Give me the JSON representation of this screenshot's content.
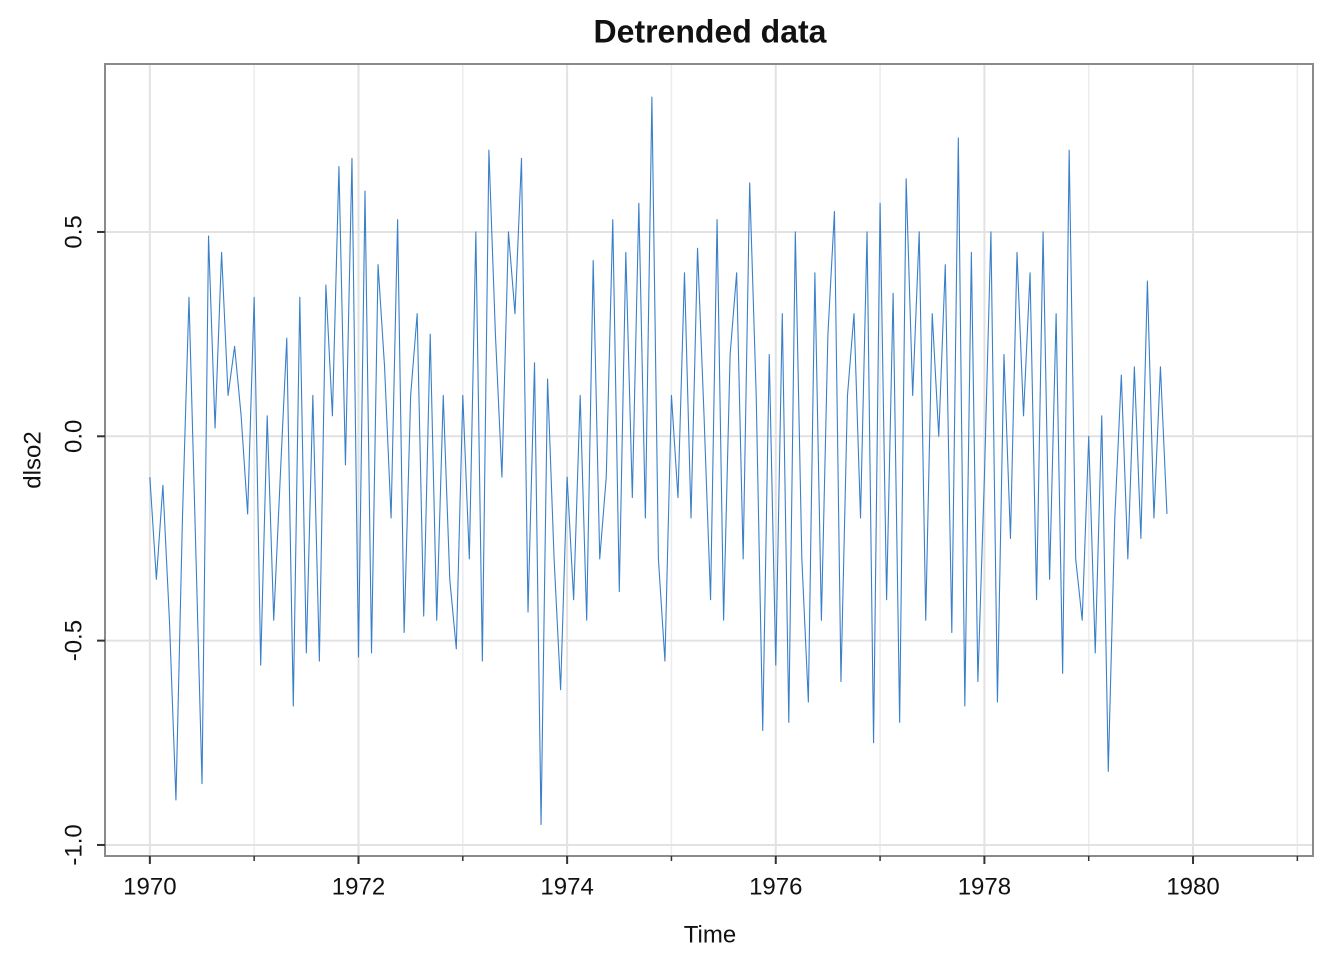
{
  "chart_data": {
    "type": "line",
    "title": "Detrended data",
    "xlabel": "Time",
    "ylabel": "dlso2",
    "x": [
      1970,
      1970.0625,
      1970.125,
      1970.1875,
      1970.25,
      1970.3125,
      1970.375,
      1970.4375,
      1970.5,
      1970.5625,
      1970.625,
      1970.6875,
      1970.75,
      1970.8125,
      1970.875,
      1970.9375,
      1971,
      1971.0625,
      1971.125,
      1971.1875,
      1971.25,
      1971.3125,
      1971.375,
      1971.4375,
      1971.5,
      1971.5625,
      1971.625,
      1971.6875,
      1971.75,
      1971.8125,
      1971.875,
      1971.9375,
      1972,
      1972.0625,
      1972.125,
      1972.1875,
      1972.25,
      1972.3125,
      1972.375,
      1972.4375,
      1972.5,
      1972.5625,
      1972.625,
      1972.6875,
      1972.75,
      1972.8125,
      1972.875,
      1972.9375,
      1973,
      1973.0625,
      1973.125,
      1973.1875,
      1973.25,
      1973.3125,
      1973.375,
      1973.4375,
      1973.5,
      1973.5625,
      1973.625,
      1973.6875,
      1973.75,
      1973.8125,
      1973.875,
      1973.9375,
      1974,
      1974.0625,
      1974.125,
      1974.1875,
      1974.25,
      1974.3125,
      1974.375,
      1974.4375,
      1974.5,
      1974.5625,
      1974.625,
      1974.6875,
      1974.75,
      1974.8125,
      1974.875,
      1974.9375,
      1975,
      1975.0625,
      1975.125,
      1975.1875,
      1975.25,
      1975.3125,
      1975.375,
      1975.4375,
      1975.5,
      1975.5625,
      1975.625,
      1975.6875,
      1975.75,
      1975.8125,
      1975.875,
      1975.9375,
      1976,
      1976.0625,
      1976.125,
      1976.1875,
      1976.25,
      1976.3125,
      1976.375,
      1976.4375,
      1976.5,
      1976.5625,
      1976.625,
      1976.6875,
      1976.75,
      1976.8125,
      1976.875,
      1976.9375,
      1977,
      1977.0625,
      1977.125,
      1977.1875,
      1977.25,
      1977.3125,
      1977.375,
      1977.4375,
      1977.5,
      1977.5625,
      1977.625,
      1977.6875,
      1977.75,
      1977.8125,
      1977.875,
      1977.9375,
      1978,
      1978.0625,
      1978.125,
      1978.1875,
      1978.25,
      1978.3125,
      1978.375,
      1978.4375,
      1978.5,
      1978.5625,
      1978.625,
      1978.6875,
      1978.75,
      1978.8125,
      1978.875,
      1978.9375,
      1979,
      1979.0625,
      1979.125,
      1979.1875,
      1979.25,
      1979.3125,
      1979.375,
      1979.4375,
      1979.5,
      1979.5625,
      1979.625,
      1979.6875,
      1979.75
    ],
    "series": [
      {
        "name": "dlso2",
        "color": "#3a80c9",
        "values": [
          -0.1,
          -0.35,
          -0.12,
          -0.45,
          -0.89,
          -0.2,
          0.34,
          -0.25,
          -0.85,
          0.49,
          0.02,
          0.45,
          0.1,
          0.22,
          0.05,
          -0.19,
          0.34,
          -0.56,
          0.05,
          -0.45,
          -0.1,
          0.24,
          -0.66,
          0.34,
          -0.53,
          0.1,
          -0.55,
          0.37,
          0.05,
          0.66,
          -0.07,
          0.68,
          -0.54,
          0.6,
          -0.53,
          0.42,
          0.17,
          -0.2,
          0.53,
          -0.48,
          0.1,
          0.3,
          -0.44,
          0.25,
          -0.45,
          0.1,
          -0.35,
          -0.52,
          0.1,
          -0.3,
          0.5,
          -0.55,
          0.7,
          0.25,
          -0.1,
          0.5,
          0.3,
          0.68,
          -0.43,
          0.18,
          -0.95,
          0.14,
          -0.3,
          -0.62,
          -0.1,
          -0.4,
          0.1,
          -0.45,
          0.43,
          -0.3,
          -0.1,
          0.53,
          -0.38,
          0.45,
          -0.15,
          0.57,
          -0.2,
          0.83,
          -0.3,
          -0.55,
          0.1,
          -0.15,
          0.4,
          -0.2,
          0.46,
          0.05,
          -0.4,
          0.53,
          -0.45,
          0.2,
          0.4,
          -0.3,
          0.62,
          0.1,
          -0.72,
          0.2,
          -0.56,
          0.3,
          -0.7,
          0.5,
          -0.3,
          -0.65,
          0.4,
          -0.45,
          0.25,
          0.55,
          -0.6,
          0.1,
          0.3,
          -0.2,
          0.5,
          -0.75,
          0.57,
          -0.4,
          0.35,
          -0.7,
          0.63,
          0.1,
          0.5,
          -0.45,
          0.3,
          0.0,
          0.42,
          -0.48,
          0.73,
          -0.66,
          0.45,
          -0.6,
          -0.1,
          0.5,
          -0.65,
          0.2,
          -0.25,
          0.45,
          0.05,
          0.4,
          -0.4,
          0.5,
          -0.35,
          0.3,
          -0.58,
          0.7,
          -0.3,
          -0.45,
          0.0,
          -0.53,
          0.05,
          -0.82,
          -0.2,
          0.15,
          -0.3,
          0.17,
          -0.25,
          0.38,
          -0.2,
          0.17,
          -0.19
        ]
      }
    ],
    "xlim": [
      1969.57,
      1981.15
    ],
    "xticks": [
      1970,
      1972,
      1974,
      1976,
      1978,
      1980
    ],
    "xminorticks": [
      1971,
      1973,
      1975,
      1977,
      1979,
      1981
    ],
    "ylim": [
      -1.027,
      0.911
    ],
    "yticks": [
      {
        "value": -1,
        "label": "-1.0"
      },
      -0.5,
      {
        "value": 0,
        "label": "0.0"
      },
      0.5
    ],
    "grid": true
  }
}
